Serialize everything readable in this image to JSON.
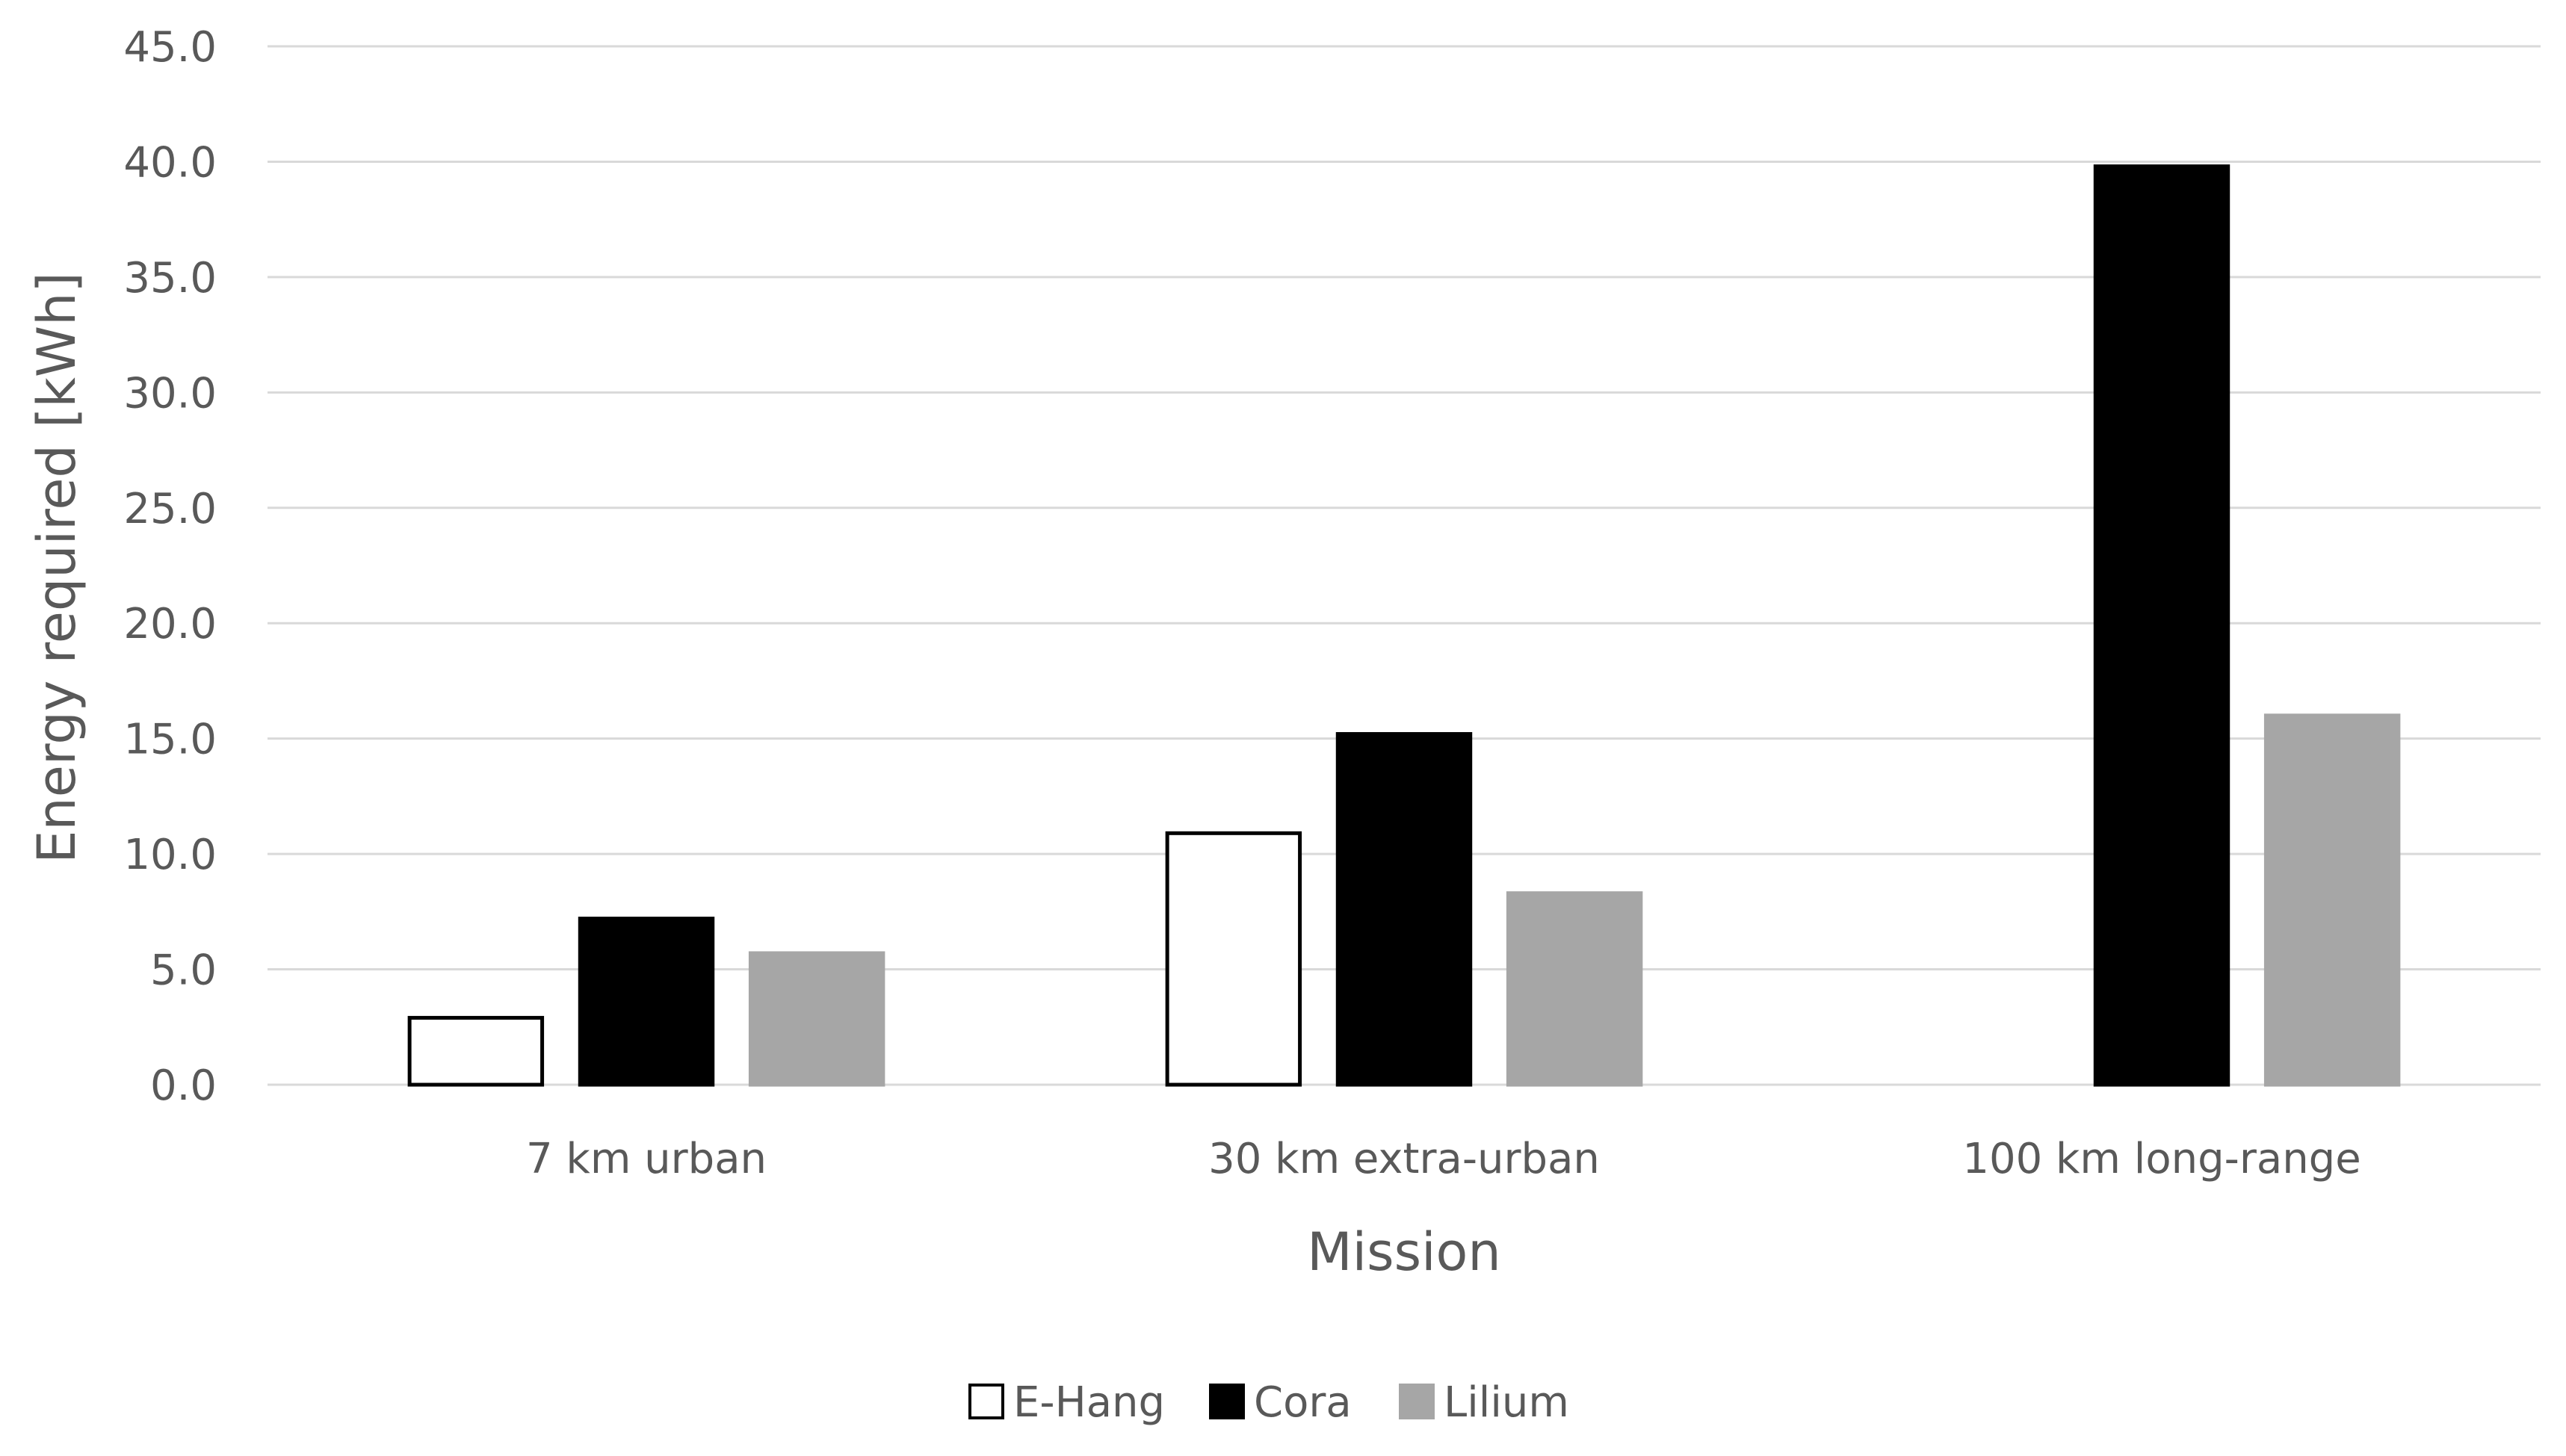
{
  "chart_data": {
    "type": "bar",
    "categories": [
      "7 km urban",
      "30 km extra-urban",
      "100 km long-range"
    ],
    "series": [
      {
        "name": "E-Hang",
        "values": [
          2.9,
          10.9,
          null
        ],
        "color": "#ffffff",
        "stroke": "#000000"
      },
      {
        "name": "Cora",
        "values": [
          7.2,
          15.2,
          39.8
        ],
        "color": "#000000",
        "stroke": "#000000"
      },
      {
        "name": "Lilium",
        "values": [
          5.7,
          8.3,
          16.0
        ],
        "color": "#a6a6a6",
        "stroke": "#a6a6a6"
      }
    ],
    "xlabel": "Mission",
    "ylabel": "Energy required [kWh]",
    "ylim": [
      0,
      45
    ],
    "yticks": [
      "0.0",
      "5.0",
      "10.0",
      "15.0",
      "20.0",
      "25.0",
      "30.0",
      "35.0",
      "40.0",
      "45.0"
    ],
    "grid": true,
    "legend_position": "bottom"
  }
}
